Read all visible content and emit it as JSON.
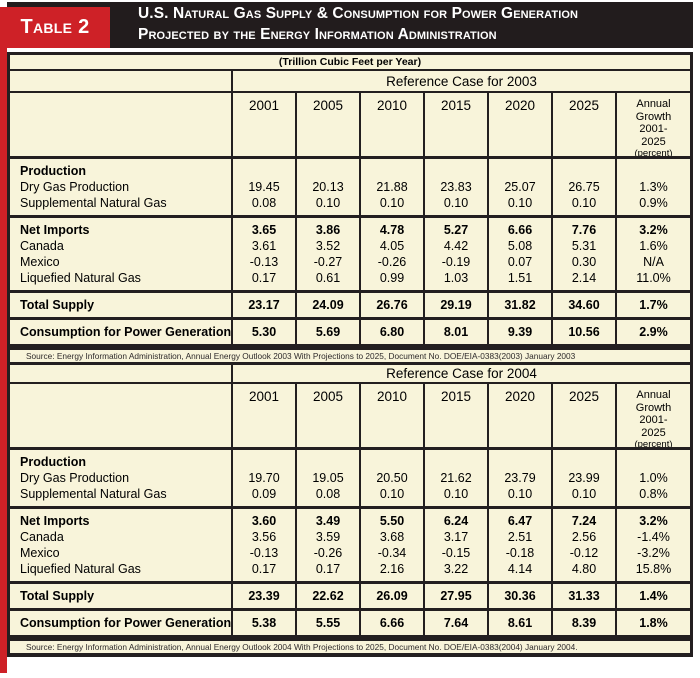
{
  "colors": {
    "red": "#ce2127",
    "banner_black": "#221c1d",
    "cream": "#f8f4da",
    "border": "#231f20"
  },
  "header": {
    "table_label": "Table 2",
    "title_line1": "U.S. Natural Gas Supply & Consumption for Power Generation",
    "title_line2": "Projected by the Energy Information Administration",
    "subtitle": "(Trillion Cubic Feet per Year)"
  },
  "column_years": [
    "2001",
    "2005",
    "2010",
    "2015",
    "2020",
    "2025"
  ],
  "growth_header_lines": [
    "Annual",
    "Growth",
    "2001-",
    "2025"
  ],
  "growth_header_unit": "(percent)",
  "sections": [
    {
      "title": "Reference Case for 2003",
      "bands": [
        {
          "lines": [
            {
              "label": "Production",
              "bold": true,
              "values": [
                "",
                "",
                "",
                "",
                "",
                ""
              ],
              "growth": ""
            },
            {
              "label": "Dry Gas Production",
              "bold": false,
              "values": [
                "19.45",
                "20.13",
                "21.88",
                "23.83",
                "25.07",
                "26.75"
              ],
              "growth": "1.3%"
            },
            {
              "label": "Supplemental Natural Gas",
              "bold": false,
              "values": [
                "0.08",
                "0.10",
                "0.10",
                "0.10",
                "0.10",
                "0.10"
              ],
              "growth": "0.9%"
            }
          ]
        },
        {
          "lines": [
            {
              "label": "Net Imports",
              "bold": true,
              "values": [
                "3.65",
                "3.86",
                "4.78",
                "5.27",
                "6.66",
                "7.76"
              ],
              "growth": "3.2%"
            },
            {
              "label": "Canada",
              "bold": false,
              "values": [
                "3.61",
                "3.52",
                "4.05",
                "4.42",
                "5.08",
                "5.31"
              ],
              "growth": "1.6%"
            },
            {
              "label": "Mexico",
              "bold": false,
              "values": [
                "-0.13",
                "-0.27",
                "-0.26",
                "-0.19",
                "0.07",
                "0.30"
              ],
              "growth": "N/A"
            },
            {
              "label": "Liquefied Natural Gas",
              "bold": false,
              "values": [
                "0.17",
                "0.61",
                "0.99",
                "1.03",
                "1.51",
                "2.14"
              ],
              "growth": "11.0%"
            }
          ]
        },
        {
          "lines": [
            {
              "label": "Total Supply",
              "bold": true,
              "values": [
                "23.17",
                "24.09",
                "26.76",
                "29.19",
                "31.82",
                "34.60"
              ],
              "growth": "1.7%"
            }
          ]
        },
        {
          "lines": [
            {
              "label": "Consumption for Power Generation",
              "bold": true,
              "values": [
                "5.30",
                "5.69",
                "6.80",
                "8.01",
                "9.39",
                "10.56"
              ],
              "growth": "2.9%"
            }
          ]
        }
      ],
      "source": "Source: Energy Information Administration, Annual Energy Outlook 2003 With Projections to 2025, Document No. DOE/EIA-0383(2003) January 2003"
    },
    {
      "title": "Reference Case for 2004",
      "bands": [
        {
          "lines": [
            {
              "label": "Production",
              "bold": true,
              "values": [
                "",
                "",
                "",
                "",
                "",
                ""
              ],
              "growth": ""
            },
            {
              "label": "Dry Gas Production",
              "bold": false,
              "values": [
                "19.70",
                "19.05",
                "20.50",
                "21.62",
                "23.79",
                "23.99"
              ],
              "growth": "1.0%"
            },
            {
              "label": "Supplemental Natural Gas",
              "bold": false,
              "values": [
                "0.09",
                "0.08",
                "0.10",
                "0.10",
                "0.10",
                "0.10"
              ],
              "growth": "0.8%"
            }
          ]
        },
        {
          "lines": [
            {
              "label": "Net Imports",
              "bold": true,
              "values": [
                "3.60",
                "3.49",
                "5.50",
                "6.24",
                "6.47",
                "7.24"
              ],
              "growth": "3.2%"
            },
            {
              "label": "Canada",
              "bold": false,
              "values": [
                "3.56",
                "3.59",
                "3.68",
                "3.17",
                "2.51",
                "2.56"
              ],
              "growth": "-1.4%"
            },
            {
              "label": "Mexico",
              "bold": false,
              "values": [
                "-0.13",
                "-0.26",
                "-0.34",
                "-0.15",
                "-0.18",
                "-0.12"
              ],
              "growth": "-3.2%"
            },
            {
              "label": "Liquefied Natural Gas",
              "bold": false,
              "values": [
                "0.17",
                "0.17",
                "2.16",
                "3.22",
                "4.14",
                "4.80"
              ],
              "growth": "15.8%"
            }
          ]
        },
        {
          "lines": [
            {
              "label": "Total Supply",
              "bold": true,
              "values": [
                "23.39",
                "22.62",
                "26.09",
                "27.95",
                "30.36",
                "31.33"
              ],
              "growth": "1.4%"
            }
          ]
        },
        {
          "lines": [
            {
              "label": "Consumption for Power Generation",
              "bold": true,
              "values": [
                "5.38",
                "5.55",
                "6.66",
                "7.64",
                "8.61",
                "8.39"
              ],
              "growth": "1.8%"
            }
          ]
        }
      ],
      "source": "Source: Energy Information Administration, Annual Energy Outlook 2004 With Projections to 2025, Document No. DOE/EIA-0383(2004) January 2004."
    }
  ]
}
